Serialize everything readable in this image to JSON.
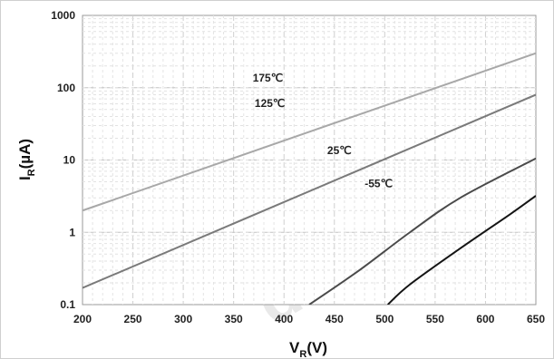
{
  "chart_data": {
    "type": "line",
    "title": "",
    "xlabel": {
      "main": "V",
      "sub": "R",
      "unit": "(V)"
    },
    "ylabel": {
      "main": "I",
      "sub": "R",
      "unit": "(µA)"
    },
    "xlim": [
      200,
      650
    ],
    "ylim": [
      0.1,
      1000
    ],
    "yscale": "log",
    "grid": true,
    "x_ticks": [
      "200",
      "250",
      "300",
      "350",
      "400",
      "450",
      "500",
      "550",
      "600",
      "650"
    ],
    "y_ticks": [
      "0.1",
      "1",
      "10",
      "100",
      "1000"
    ],
    "series": [
      {
        "name": "175℃",
        "color": "#a8a8a8",
        "x": [
          200,
          650
        ],
        "y": [
          2.0,
          300
        ],
        "label_at": [
          384,
          122
        ]
      },
      {
        "name": "125℃",
        "color": "#7a7a7a",
        "x": [
          200,
          650
        ],
        "y": [
          0.17,
          80
        ],
        "label_at": [
          386,
          54
        ]
      },
      {
        "name": "25℃",
        "color": "#4a4a4a",
        "x": [
          425,
          475,
          525,
          575,
          650
        ],
        "y": [
          0.1,
          0.3,
          1.0,
          3.0,
          10.5
        ],
        "label_at": [
          455,
          12
        ]
      },
      {
        "name": "-55℃",
        "color": "#141414",
        "x": [
          503,
          525,
          575,
          625,
          650
        ],
        "y": [
          0.1,
          0.19,
          0.6,
          1.8,
          3.2
        ],
        "label_at": [
          494,
          4.2
        ]
      }
    ]
  },
  "watermark": "ductor"
}
